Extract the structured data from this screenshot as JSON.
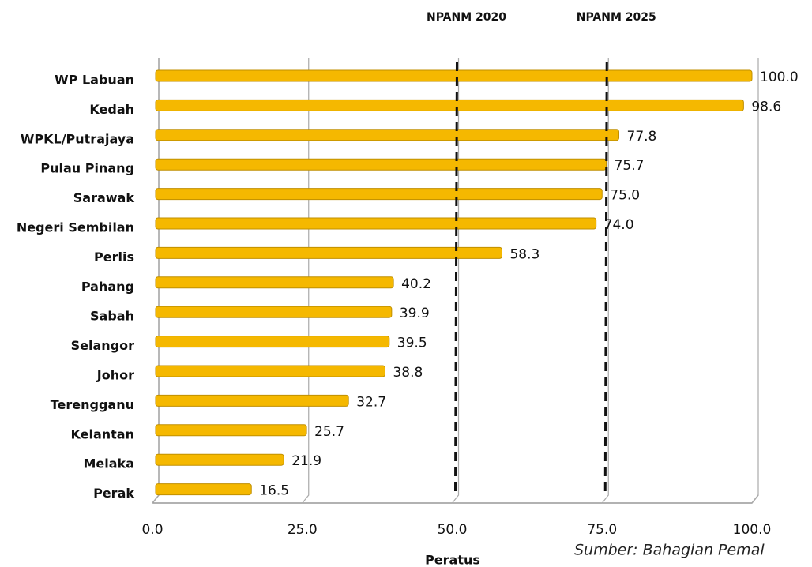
{
  "chart_data": {
    "type": "bar",
    "orientation": "horizontal",
    "categories": [
      "WP Labuan",
      "Kedah",
      "WPKL/Putrajaya",
      "Pulau Pinang",
      "Sarawak",
      "Negeri Sembilan",
      "Perlis",
      "Pahang",
      "Sabah",
      "Selangor",
      "Johor",
      "Terengganu",
      "Kelantan",
      "Melaka",
      "Perak"
    ],
    "values": [
      100.0,
      98.6,
      77.8,
      75.7,
      75.0,
      74.0,
      58.3,
      40.2,
      39.9,
      39.5,
      38.8,
      32.7,
      25.7,
      21.9,
      16.5
    ],
    "value_labels": [
      "100.0",
      "98.6",
      "77.8",
      "75.7",
      "75.0",
      "74.0",
      "58.3",
      "40.2",
      "39.9",
      "39.5",
      "38.8",
      "32.7",
      "25.7",
      "21.9",
      "16.5"
    ],
    "color": "#f5b800",
    "xlim": [
      0,
      100
    ],
    "xticks": [
      {
        "value": 0,
        "label": "0.0"
      },
      {
        "value": 25,
        "label": "25.0"
      },
      {
        "value": 50,
        "label": "50.0"
      },
      {
        "value": 75,
        "label": "75.0"
      },
      {
        "value": 100,
        "label": "100.0"
      }
    ],
    "xlabel": "Peratus",
    "grid": true,
    "annotations": [
      {
        "label": "NPANM 2020",
        "value": 50
      },
      {
        "label": "NPANM 2025",
        "value": 75
      }
    ],
    "source": "Sumber: Bahagian Pemal"
  }
}
